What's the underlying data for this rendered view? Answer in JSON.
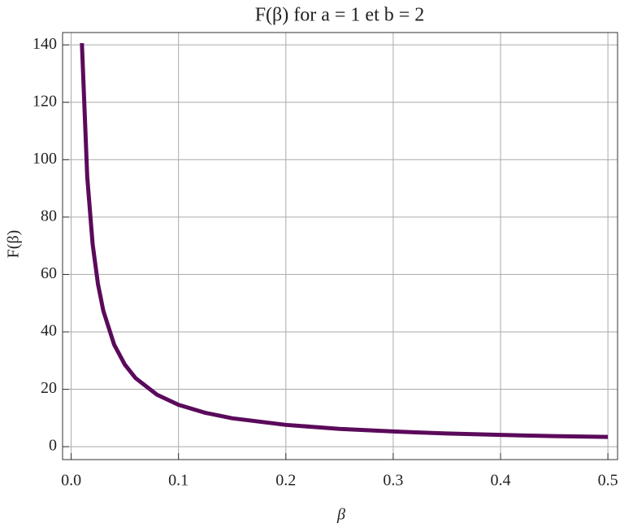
{
  "chart_data": {
    "type": "line",
    "title": "F(β) for a = 1 et b = 2",
    "xlabel": "β",
    "ylabel": "F(β)",
    "x": [
      0.01,
      0.015,
      0.02,
      0.025,
      0.03,
      0.04,
      0.05,
      0.06,
      0.08,
      0.1,
      0.125,
      0.15,
      0.2,
      0.25,
      0.3,
      0.35,
      0.4,
      0.45,
      0.5
    ],
    "series": [
      {
        "color": "#5b0a5b",
        "values": [
          140.6,
          93.9,
          70.6,
          56.6,
          47.3,
          35.6,
          28.6,
          23.9,
          18.1,
          14.6,
          11.8,
          9.9,
          7.6,
          6.2,
          5.3,
          4.6,
          4.1,
          3.7,
          3.4
        ]
      }
    ],
    "xlim": [
      -0.008,
      0.509
    ],
    "ylim": [
      -4.5,
      144.3
    ],
    "xticks": [
      {
        "value": 0,
        "label": "0.0"
      },
      0.1,
      0.2,
      0.3,
      0.4,
      0.5
    ],
    "yticks": [
      0,
      20,
      40,
      60,
      80,
      100,
      120,
      140
    ],
    "grid": true
  }
}
